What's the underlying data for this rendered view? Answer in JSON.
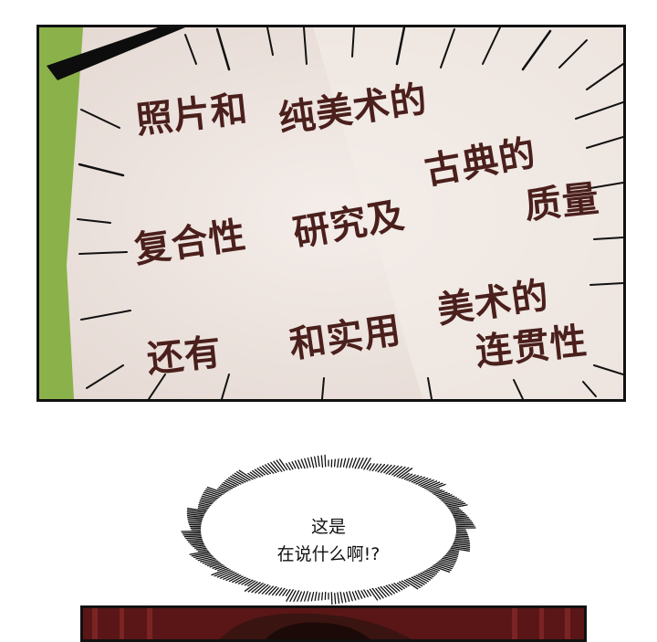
{
  "panel_top": {
    "words": [
      {
        "key": "w1",
        "text": "照片和"
      },
      {
        "key": "w2",
        "text": "纯美术的"
      },
      {
        "key": "w3",
        "text": "古典的"
      },
      {
        "key": "w4",
        "text": "质量"
      },
      {
        "key": "w5",
        "text": "复合性"
      },
      {
        "key": "w6",
        "text": "研究及"
      },
      {
        "key": "w7",
        "text": "还有"
      },
      {
        "key": "w8",
        "text": "和实用"
      },
      {
        "key": "w9",
        "text": "美术的"
      },
      {
        "key": "w10",
        "text": "连贯性"
      }
    ],
    "colors": {
      "background": "#efe7e2",
      "text": "#4a1f1c",
      "green_strip": "#8bb24a",
      "lines": "#111111"
    }
  },
  "speech": {
    "line1": "这是",
    "line2": "在说什么啊!?"
  },
  "panel_bottom": {
    "colors": {
      "curtain": "#5a1616",
      "stripe": "#7a2424",
      "hair": "#3a1410"
    }
  }
}
